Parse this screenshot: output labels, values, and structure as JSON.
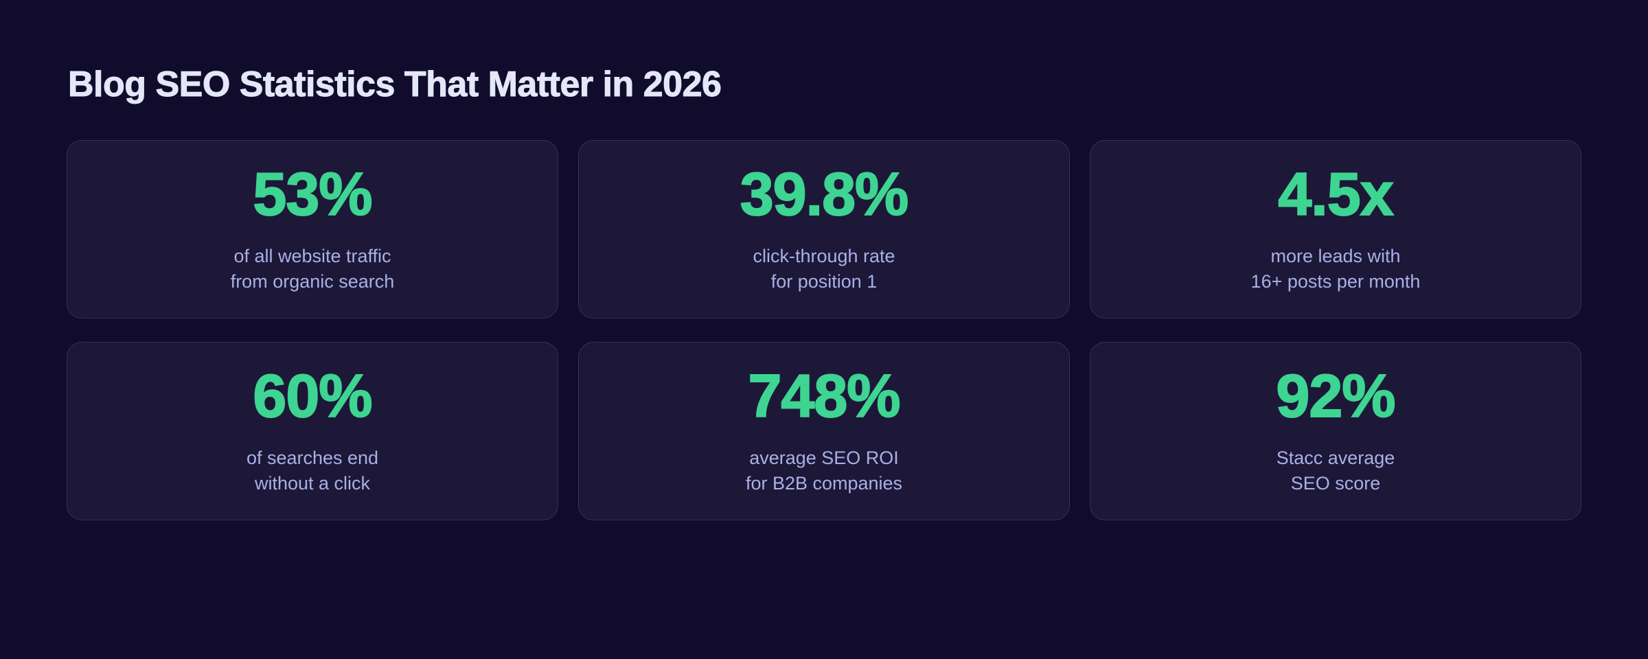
{
  "page": {
    "title": "Blog SEO Statistics That Matter in 2026"
  },
  "theme": {
    "page_background": "#110c2b",
    "card_background": "#1d1838",
    "card_border": "#363157",
    "value_color": "#3ed492",
    "label_color": "#a8b0e6",
    "title_color": "#e3e7f7"
  },
  "stats": [
    {
      "value": "53%",
      "label_line1": "of all website traffic",
      "label_line2": "from organic search"
    },
    {
      "value": "39.8%",
      "label_line1": "click-through rate",
      "label_line2": "for position 1"
    },
    {
      "value": "4.5x",
      "label_line1": "more leads with",
      "label_line2": "16+ posts per month"
    },
    {
      "value": "60%",
      "label_line1": "of searches end",
      "label_line2": "without a click"
    },
    {
      "value": "748%",
      "label_line1": "average SEO ROI",
      "label_line2": "for B2B companies"
    },
    {
      "value": "92%",
      "label_line1": "Stacc average",
      "label_line2": "SEO score"
    }
  ]
}
